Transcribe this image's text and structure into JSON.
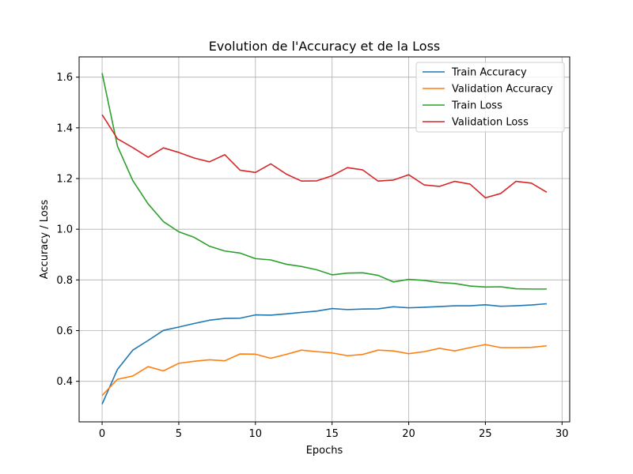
{
  "chart_data": {
    "type": "line",
    "title": "Evolution de l'Accuracy et de la Loss",
    "xlabel": "Epochs",
    "ylabel": "Accuracy / Loss",
    "xlim": [
      -1.5,
      30.5
    ],
    "ylim": [
      0.24,
      1.68
    ],
    "xticks": [
      0,
      5,
      10,
      15,
      20,
      25,
      30
    ],
    "yticks": [
      0.4,
      0.6,
      0.8,
      1.0,
      1.2,
      1.4,
      1.6
    ],
    "xtick_labels": [
      "0",
      "5",
      "10",
      "15",
      "20",
      "25",
      "30"
    ],
    "ytick_labels": [
      "0.4",
      "0.6",
      "0.8",
      "1.0",
      "1.2",
      "1.4",
      "1.6"
    ],
    "grid": true,
    "legend_position": "top-right",
    "x": [
      0,
      1,
      2,
      3,
      4,
      5,
      6,
      7,
      8,
      9,
      10,
      11,
      12,
      13,
      14,
      15,
      16,
      17,
      18,
      19,
      20,
      21,
      22,
      23,
      24,
      25,
      26,
      27,
      28,
      29
    ],
    "series": [
      {
        "name": "Train Accuracy",
        "color": "#1f77b4",
        "values": [
          0.31,
          0.447,
          0.523,
          0.561,
          0.601,
          0.614,
          0.628,
          0.641,
          0.648,
          0.649,
          0.662,
          0.661,
          0.666,
          0.672,
          0.677,
          0.687,
          0.683,
          0.685,
          0.686,
          0.694,
          0.69,
          0.692,
          0.695,
          0.698,
          0.698,
          0.702,
          0.696,
          0.698,
          0.701,
          0.706
        ]
      },
      {
        "name": "Validation Accuracy",
        "color": "#ff7f0e",
        "values": [
          0.344,
          0.408,
          0.421,
          0.458,
          0.441,
          0.471,
          0.479,
          0.485,
          0.481,
          0.508,
          0.507,
          0.491,
          0.506,
          0.523,
          0.517,
          0.512,
          0.501,
          0.506,
          0.523,
          0.52,
          0.509,
          0.517,
          0.53,
          0.52,
          0.533,
          0.545,
          0.533,
          0.533,
          0.534,
          0.54
        ]
      },
      {
        "name": "Train Loss",
        "color": "#2ca02c",
        "values": [
          1.616,
          1.328,
          1.192,
          1.1,
          1.03,
          0.99,
          0.968,
          0.933,
          0.914,
          0.906,
          0.884,
          0.879,
          0.862,
          0.853,
          0.84,
          0.82,
          0.827,
          0.828,
          0.818,
          0.792,
          0.802,
          0.798,
          0.79,
          0.786,
          0.776,
          0.772,
          0.773,
          0.765,
          0.764,
          0.764
        ]
      },
      {
        "name": "Validation Loss",
        "color": "#d62728",
        "values": [
          1.452,
          1.357,
          1.322,
          1.284,
          1.321,
          1.303,
          1.281,
          1.266,
          1.294,
          1.233,
          1.224,
          1.258,
          1.218,
          1.19,
          1.191,
          1.211,
          1.243,
          1.234,
          1.19,
          1.194,
          1.215,
          1.175,
          1.169,
          1.189,
          1.178,
          1.124,
          1.141,
          1.189,
          1.182,
          1.146
        ]
      }
    ]
  }
}
